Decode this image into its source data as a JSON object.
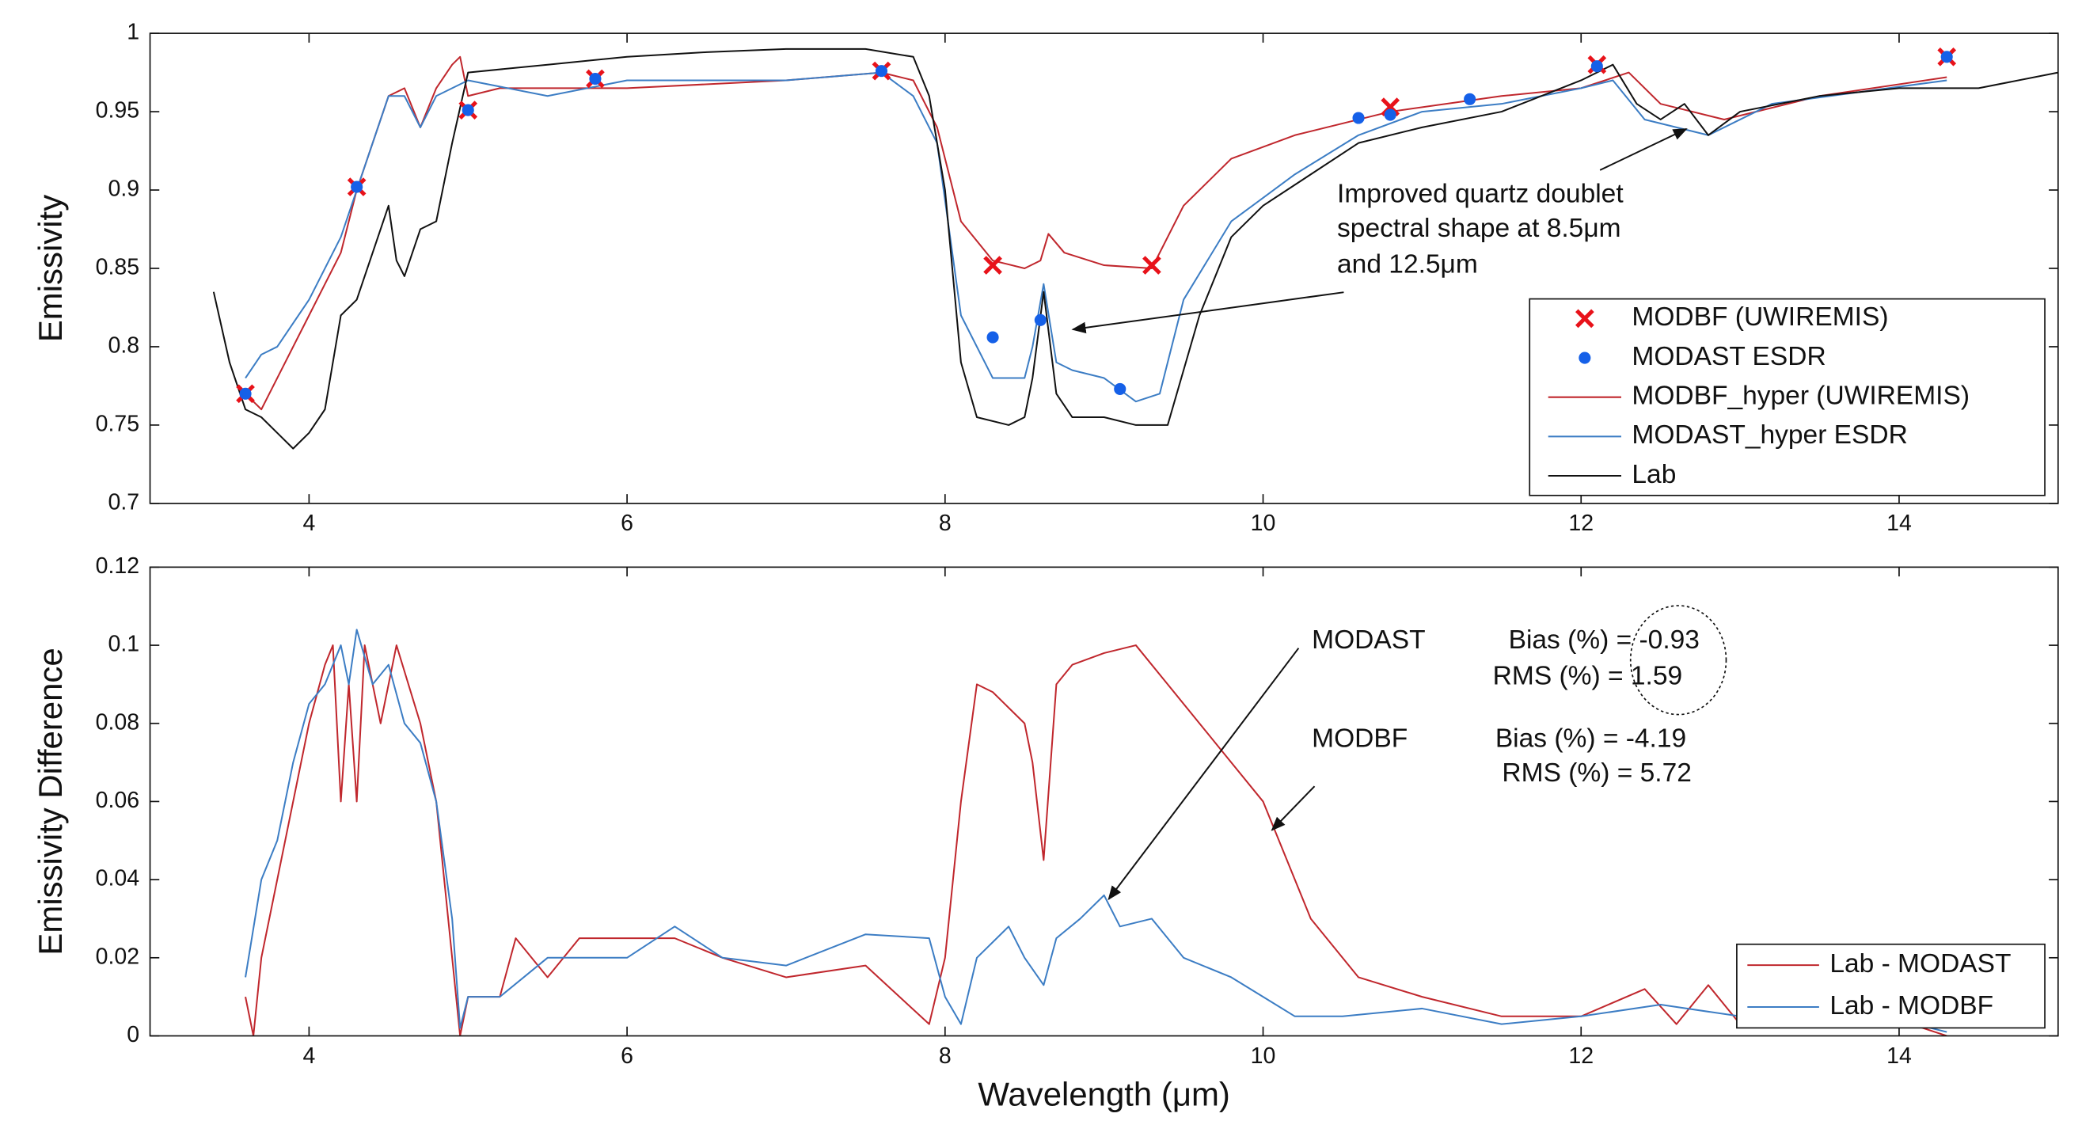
{
  "chart_data": [
    {
      "type": "line",
      "ylabel": "Emissivity",
      "xlim": [
        3,
        15
      ],
      "xticks": [
        4,
        6,
        8,
        10,
        12,
        14
      ],
      "ylim": [
        0.7,
        1
      ],
      "yticks": [
        0.7,
        0.75,
        0.8,
        0.85,
        0.9,
        0.95,
        1
      ],
      "legend": "lower right",
      "annotations": [
        "Improved quartz doublet",
        "spectral shape at 8.5μm",
        "and 12.5μm"
      ],
      "series": [
        {
          "name": "MODBF (UWIREMIS)",
          "color": "#e8121a",
          "marker": "x",
          "x": [
            3.6,
            4.3,
            5.0,
            5.8,
            7.6,
            8.3,
            9.3,
            10.8,
            12.1,
            14.3
          ],
          "values": [
            0.77,
            0.902,
            0.951,
            0.971,
            0.976,
            0.852,
            0.852,
            0.953,
            0.98,
            0.985
          ]
        },
        {
          "name": "MODAST ESDR",
          "color": "#1560e8",
          "marker": "o",
          "x": [
            3.6,
            4.3,
            5.0,
            5.8,
            7.6,
            8.3,
            8.6,
            9.1,
            10.6,
            10.8,
            11.3,
            12.1,
            14.3
          ],
          "values": [
            0.77,
            0.902,
            0.951,
            0.971,
            0.976,
            0.806,
            0.817,
            0.773,
            0.946,
            0.948,
            0.958,
            0.979,
            0.985
          ]
        },
        {
          "name": "MODBF_hyper (UWIREMIS)",
          "color": "#c0272d",
          "x": [
            3.6,
            3.7,
            3.8,
            4.0,
            4.2,
            4.3,
            4.5,
            4.6,
            4.7,
            4.8,
            4.9,
            4.95,
            5.0,
            5.2,
            5.5,
            6.0,
            7.0,
            7.6,
            7.8,
            7.95,
            8.1,
            8.3,
            8.5,
            8.6,
            8.65,
            8.75,
            9.0,
            9.3,
            9.5,
            9.8,
            10.2,
            10.8,
            11.5,
            12.0,
            12.3,
            12.5,
            12.7,
            12.9,
            13.5,
            14.3
          ],
          "values": [
            0.77,
            0.76,
            0.78,
            0.82,
            0.86,
            0.9,
            0.96,
            0.965,
            0.94,
            0.965,
            0.98,
            0.985,
            0.96,
            0.965,
            0.965,
            0.965,
            0.97,
            0.975,
            0.97,
            0.94,
            0.88,
            0.855,
            0.85,
            0.855,
            0.872,
            0.86,
            0.852,
            0.85,
            0.89,
            0.92,
            0.935,
            0.95,
            0.96,
            0.965,
            0.975,
            0.955,
            0.95,
            0.945,
            0.96,
            0.972
          ]
        },
        {
          "name": "MODAST_hyper ESDR",
          "color": "#3c7dc4",
          "x": [
            3.6,
            3.7,
            3.8,
            4.0,
            4.2,
            4.3,
            4.5,
            4.6,
            4.7,
            4.8,
            5.0,
            5.5,
            6.0,
            7.0,
            7.6,
            7.8,
            7.95,
            8.1,
            8.3,
            8.5,
            8.55,
            8.62,
            8.7,
            8.8,
            9.0,
            9.2,
            9.35,
            9.5,
            9.8,
            10.2,
            10.6,
            11.0,
            11.5,
            12.0,
            12.2,
            12.4,
            12.6,
            12.8,
            13.2,
            14.3
          ],
          "values": [
            0.78,
            0.795,
            0.8,
            0.83,
            0.87,
            0.9,
            0.96,
            0.96,
            0.94,
            0.96,
            0.97,
            0.96,
            0.97,
            0.97,
            0.975,
            0.96,
            0.93,
            0.82,
            0.78,
            0.78,
            0.8,
            0.84,
            0.79,
            0.785,
            0.78,
            0.765,
            0.77,
            0.83,
            0.88,
            0.91,
            0.935,
            0.95,
            0.955,
            0.965,
            0.97,
            0.945,
            0.94,
            0.935,
            0.955,
            0.97
          ]
        },
        {
          "name": "Lab",
          "color": "#111111",
          "x": [
            3.4,
            3.5,
            3.6,
            3.7,
            3.8,
            3.9,
            4.0,
            4.1,
            4.2,
            4.3,
            4.4,
            4.5,
            4.55,
            4.6,
            4.7,
            4.8,
            4.9,
            5.0,
            5.5,
            6.0,
            6.5,
            7.0,
            7.5,
            7.8,
            7.9,
            8.0,
            8.1,
            8.2,
            8.4,
            8.5,
            8.55,
            8.62,
            8.7,
            8.8,
            9.0,
            9.2,
            9.4,
            9.6,
            9.8,
            10.0,
            10.3,
            10.6,
            11.0,
            11.5,
            12.0,
            12.2,
            12.35,
            12.5,
            12.65,
            12.8,
            13.0,
            13.5,
            14.0,
            14.5,
            15.0
          ],
          "values": [
            0.835,
            0.79,
            0.76,
            0.755,
            0.745,
            0.735,
            0.745,
            0.76,
            0.82,
            0.83,
            0.86,
            0.89,
            0.855,
            0.845,
            0.875,
            0.88,
            0.93,
            0.975,
            0.98,
            0.985,
            0.988,
            0.99,
            0.99,
            0.985,
            0.96,
            0.9,
            0.79,
            0.755,
            0.75,
            0.755,
            0.78,
            0.835,
            0.77,
            0.755,
            0.755,
            0.75,
            0.75,
            0.82,
            0.87,
            0.89,
            0.91,
            0.93,
            0.94,
            0.95,
            0.97,
            0.98,
            0.955,
            0.945,
            0.955,
            0.935,
            0.95,
            0.96,
            0.965,
            0.965,
            0.975
          ]
        }
      ]
    },
    {
      "type": "line",
      "xlabel": "Wavelength (μm)",
      "ylabel": "Emissivity Difference",
      "xlim": [
        3,
        15
      ],
      "xticks": [
        4,
        6,
        8,
        10,
        12,
        14
      ],
      "ylim": [
        0,
        0.12
      ],
      "yticks": [
        0,
        0.02,
        0.04,
        0.06,
        0.08,
        0.1,
        0.12
      ],
      "legend": "lower right",
      "annotations": [
        "MODAST",
        "Bias (%) = -0.93",
        "RMS (%) = 1.59",
        "MODBF",
        "Bias (%) = -4.19",
        "RMS (%) = 5.72"
      ],
      "series": [
        {
          "name": "Lab - MODAST",
          "color": "#c0272d",
          "x": [
            3.6,
            3.65,
            3.7,
            3.8,
            3.9,
            4.0,
            4.1,
            4.15,
            4.2,
            4.25,
            4.3,
            4.35,
            4.45,
            4.5,
            4.55,
            4.7,
            4.8,
            4.85,
            4.95,
            5.0,
            5.2,
            5.3,
            5.5,
            5.7,
            6.0,
            6.3,
            6.6,
            7.0,
            7.5,
            7.9,
            8.0,
            8.1,
            8.2,
            8.3,
            8.5,
            8.55,
            8.62,
            8.7,
            8.8,
            9.0,
            9.2,
            9.4,
            9.6,
            9.8,
            10.0,
            10.3,
            10.6,
            11.0,
            11.5,
            12.0,
            12.4,
            12.6,
            12.8,
            13.0,
            13.5,
            14.0,
            14.3
          ],
          "values": [
            0.01,
            0,
            0.02,
            0.04,
            0.06,
            0.08,
            0.095,
            0.1,
            0.06,
            0.09,
            0.06,
            0.1,
            0.08,
            0.09,
            0.1,
            0.08,
            0.06,
            0.04,
            0,
            0.01,
            0.01,
            0.025,
            0.015,
            0.025,
            0.025,
            0.025,
            0.02,
            0.015,
            0.018,
            0.003,
            0.02,
            0.06,
            0.09,
            0.088,
            0.08,
            0.07,
            0.045,
            0.09,
            0.095,
            0.098,
            0.1,
            0.09,
            0.08,
            0.07,
            0.06,
            0.03,
            0.015,
            0.01,
            0.005,
            0.005,
            0.012,
            0.003,
            0.013,
            0.003,
            0.003,
            0.004,
            0
          ]
        },
        {
          "name": "Lab - MODBF",
          "color": "#3c7dc4",
          "x": [
            3.6,
            3.7,
            3.8,
            3.9,
            4.0,
            4.1,
            4.2,
            4.25,
            4.3,
            4.4,
            4.5,
            4.6,
            4.7,
            4.8,
            4.9,
            4.95,
            5.0,
            5.2,
            5.5,
            6.0,
            6.3,
            6.6,
            7.0,
            7.5,
            7.9,
            8.0,
            8.1,
            8.2,
            8.4,
            8.5,
            8.62,
            8.7,
            8.85,
            9.0,
            9.1,
            9.3,
            9.5,
            9.8,
            10.0,
            10.2,
            10.5,
            11.0,
            11.5,
            12.0,
            12.5,
            13.0,
            13.5,
            14.0,
            14.3
          ],
          "values": [
            0.015,
            0.04,
            0.05,
            0.07,
            0.085,
            0.09,
            0.1,
            0.09,
            0.104,
            0.09,
            0.095,
            0.08,
            0.075,
            0.06,
            0.03,
            0.002,
            0.01,
            0.01,
            0.02,
            0.02,
            0.028,
            0.02,
            0.018,
            0.026,
            0.025,
            0.01,
            0.003,
            0.02,
            0.028,
            0.02,
            0.013,
            0.025,
            0.03,
            0.036,
            0.028,
            0.03,
            0.02,
            0.015,
            0.01,
            0.005,
            0.005,
            0.007,
            0.003,
            0.005,
            0.008,
            0.005,
            0.003,
            0.004,
            0.001
          ]
        }
      ]
    }
  ]
}
